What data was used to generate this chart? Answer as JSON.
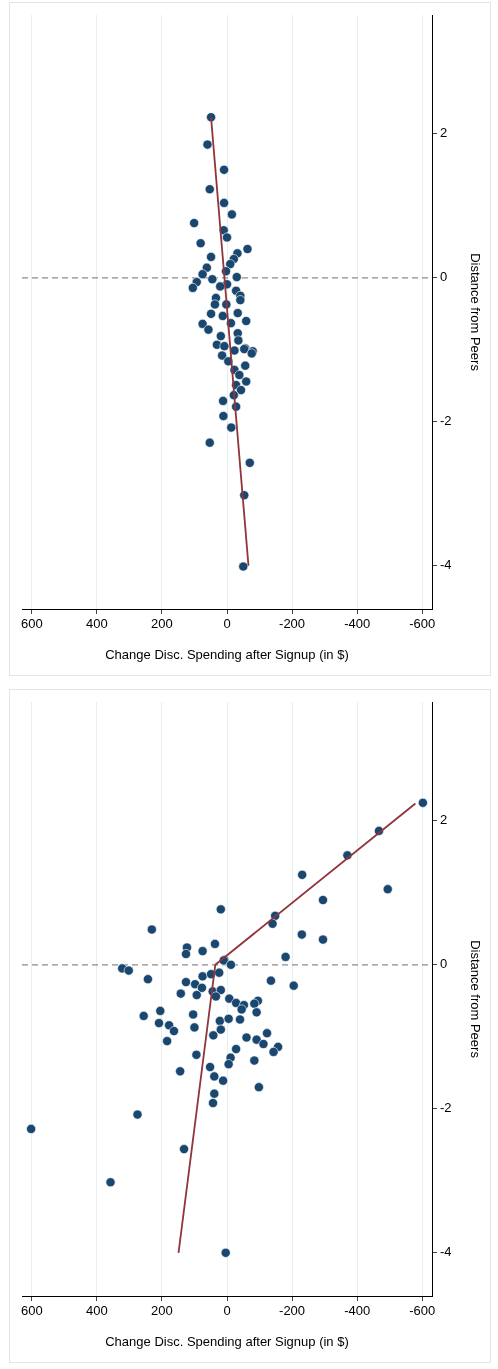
{
  "chart_data": [
    {
      "type": "scatter",
      "xlabel": "Change Disc. Spending after Signup (in $)",
      "ylabel": "Distance from Peers",
      "xlim": [
        630,
        -630
      ],
      "xticks": [
        600,
        400,
        200,
        0,
        -200,
        -400,
        -600
      ],
      "ylim": [
        -4.6,
        3.65
      ],
      "yticks": [
        -4,
        -2,
        0,
        2
      ],
      "grid": "x",
      "legend": false,
      "marker": "circle",
      "ref_lines": [
        {
          "axis": "y",
          "value": 0,
          "line_style": "dashed",
          "color": "#8c8c8c"
        }
      ],
      "series": [
        {
          "type": "scatter",
          "color": "#1a476f",
          "values": [
            2.23,
            1.85,
            1.5,
            1.23,
            1.04,
            0.88,
            0.76,
            0.66,
            0.56,
            0.48,
            0.4,
            0.34,
            0.29,
            0.26,
            0.19,
            0.14,
            0.09,
            0.05,
            0.01,
            -0.02,
            -0.06,
            -0.09,
            -0.14,
            -0.12,
            -0.18,
            -0.25,
            -0.28,
            -0.31,
            -0.37,
            -0.37,
            -0.49,
            -0.5,
            -0.53,
            -0.6,
            -0.64,
            -0.63,
            -0.72,
            -0.77,
            -0.81,
            -0.87,
            -0.93,
            -0.95,
            -0.98,
            -1.01,
            -1.02,
            -0.99,
            -1.05,
            -1.08,
            -1.16,
            -1.22,
            -1.28,
            -1.35,
            -1.44,
            -1.49,
            -1.56,
            -1.63,
            -1.71,
            -1.79,
            -1.92,
            -2.08,
            -2.29,
            -2.57,
            -3.02,
            -4.01
          ],
          "x": [
            49,
            60,
            9,
            53,
            9,
            -15,
            101,
            10,
            0,
            81,
            -63,
            -32,
            49,
            -21,
            -10,
            62,
            3,
            75,
            -30,
            45,
            93,
            0,
            105,
            21,
            -28,
            -41,
            34,
            -41,
            37,
            2,
            -33,
            49,
            13,
            -59,
            75,
            -12,
            57,
            -33,
            19,
            -35,
            31,
            8,
            -56,
            -23,
            -79,
            -53,
            -76,
            15,
            -4,
            -56,
            -23,
            -38,
            -59,
            -28,
            -43,
            -21,
            12,
            -28,
            11,
            -13,
            53,
            -70,
            -53,
            -50
          ]
        },
        {
          "type": "line",
          "color": "#90353b",
          "marker": "none",
          "values": [
            -4.0,
            2.23
          ],
          "x": [
            -66,
            49
          ]
        }
      ]
    },
    {
      "type": "scatter",
      "xlabel": "Change Disc. Spending after Signup (in $)",
      "ylabel": "Distance from Peers",
      "xlim": [
        630,
        -630
      ],
      "xticks": [
        600,
        400,
        200,
        0,
        -200,
        -400,
        -600
      ],
      "ylim": [
        -4.6,
        3.65
      ],
      "yticks": [
        -4,
        -2,
        0,
        2
      ],
      "grid": "x",
      "legend": false,
      "marker": "circle",
      "ref_lines": [
        {
          "axis": "y",
          "value": 0,
          "line_style": "dashed",
          "color": "#8c8c8c"
        }
      ],
      "series": [
        {
          "type": "scatter",
          "color": "#1a476f",
          "values": [
            2.25,
            1.86,
            1.52,
            1.25,
            1.05,
            0.9,
            0.77,
            0.68,
            0.57,
            0.49,
            0.42,
            0.35,
            0.24,
            0.29,
            0.19,
            0.15,
            0.11,
            0.07,
            0.06,
            0.0,
            -0.05,
            -0.08,
            -0.2,
            -0.16,
            -0.13,
            -0.11,
            -0.22,
            -0.29,
            -0.24,
            -0.27,
            -0.32,
            -0.4,
            -0.42,
            -0.37,
            -0.35,
            -0.44,
            -0.47,
            -0.53,
            -0.56,
            -0.62,
            -0.5,
            -0.54,
            -0.66,
            -0.64,
            -0.71,
            -0.69,
            -0.81,
            -0.84,
            -0.92,
            -1.06,
            -0.87,
            -0.78,
            -0.75,
            -0.76,
            -0.9,
            -0.98,
            -1.01,
            -1.04,
            -1.1,
            -0.95,
            -1.14,
            -1.21,
            -1.17,
            -1.29,
            -1.38,
            -1.33,
            -1.25,
            -1.42,
            -1.55,
            -1.61,
            -1.48,
            -1.7,
            -1.79,
            -1.92,
            -2.08,
            -2.28,
            -2.56,
            -3.02,
            -4.0
          ],
          "x": [
            -602,
            -467,
            -370,
            -231,
            -494,
            -295,
            19,
            -148,
            -140,
            231,
            -230,
            -295,
            123,
            37,
            75,
            126,
            -180,
            8,
            10,
            -12,
            322,
            302,
            243,
            75,
            49,
            24,
            -135,
            -205,
            126,
            98,
            77,
            142,
            93,
            44,
            19,
            34,
            -7,
            -28,
            -52,
            -45,
            -95,
            -84,
            -91,
            205,
            256,
            104,
            209,
            178,
            163,
            184,
            100,
            22,
            -5,
            -40,
            19,
            42,
            -60,
            -91,
            -112,
            -123,
            -157,
            -143,
            -28,
            -11,
            -5,
            -84,
            94,
            52,
            39,
            12,
            144,
            -98,
            39,
            43,
            275,
            602,
            132,
            358,
            4
          ]
        },
        {
          "type": "line",
          "color": "#90353b",
          "marker": "none",
          "values": [
            -4.0,
            0.0,
            2.24
          ],
          "x": [
            149,
            36,
            -579
          ]
        }
      ]
    }
  ]
}
